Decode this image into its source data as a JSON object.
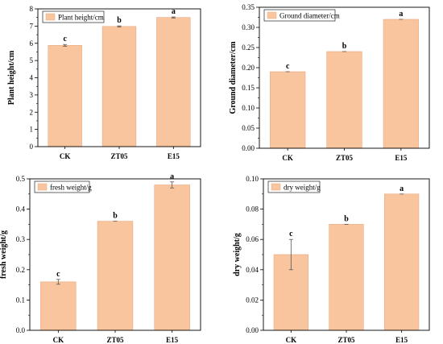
{
  "colors": {
    "bar": "#f9c59f",
    "bar_stroke": "#e8a77c",
    "axis": "#000000"
  },
  "chart_data": [
    {
      "type": "bar",
      "categories": [
        "CK",
        "ZT05",
        "E15"
      ],
      "values": [
        5.88,
        6.98,
        7.5
      ],
      "errors": [
        0.05,
        0.03,
        0.03
      ],
      "significance": [
        "c",
        "b",
        "a"
      ],
      "legend": "Plant height/cm",
      "ylabel": "Plant height/cm",
      "ylim": [
        0,
        8
      ],
      "yticks": [
        "0",
        "1",
        "2",
        "3",
        "4",
        "5",
        "6",
        "7",
        "8"
      ],
      "legend_position": "top-left"
    },
    {
      "type": "bar",
      "categories": [
        "CK",
        "ZT05",
        "E15"
      ],
      "values": [
        0.19,
        0.24,
        0.32
      ],
      "errors": [
        0,
        0,
        0
      ],
      "significance": [
        "c",
        "b",
        "a"
      ],
      "legend": "Ground diameter/cm",
      "ylabel": "Ground diameter/cm",
      "ylim": [
        0,
        0.35
      ],
      "yticks": [
        "0.00",
        "0.05",
        "0.10",
        "0.15",
        "0.20",
        "0.25",
        "0.30",
        "0.35"
      ],
      "legend_position": "top-left"
    },
    {
      "type": "bar",
      "categories": [
        "CK",
        "ZT05",
        "E15"
      ],
      "values": [
        0.16,
        0.36,
        0.48
      ],
      "errors": [
        0.008,
        0,
        0.01
      ],
      "significance": [
        "c",
        "b",
        "a"
      ],
      "legend": "fresh weight/g",
      "ylabel": "fresh weight/g",
      "ylim": [
        0,
        0.5
      ],
      "yticks": [
        "0.0",
        "0.1",
        "0.2",
        "0.3",
        "0.4",
        "0.5"
      ],
      "legend_position": "top-left"
    },
    {
      "type": "bar",
      "categories": [
        "CK",
        "ZT05",
        "E15"
      ],
      "values": [
        0.05,
        0.07,
        0.09
      ],
      "errors": [
        0.01,
        0,
        0
      ],
      "significance": [
        "c",
        "b",
        "a"
      ],
      "legend": "dry weight/g",
      "ylabel": "dry weight/g",
      "ylim": [
        0,
        0.1
      ],
      "yticks": [
        "0.00",
        "0.02",
        "0.04",
        "0.06",
        "0.08",
        "0.10"
      ],
      "legend_position": "top-left"
    }
  ]
}
